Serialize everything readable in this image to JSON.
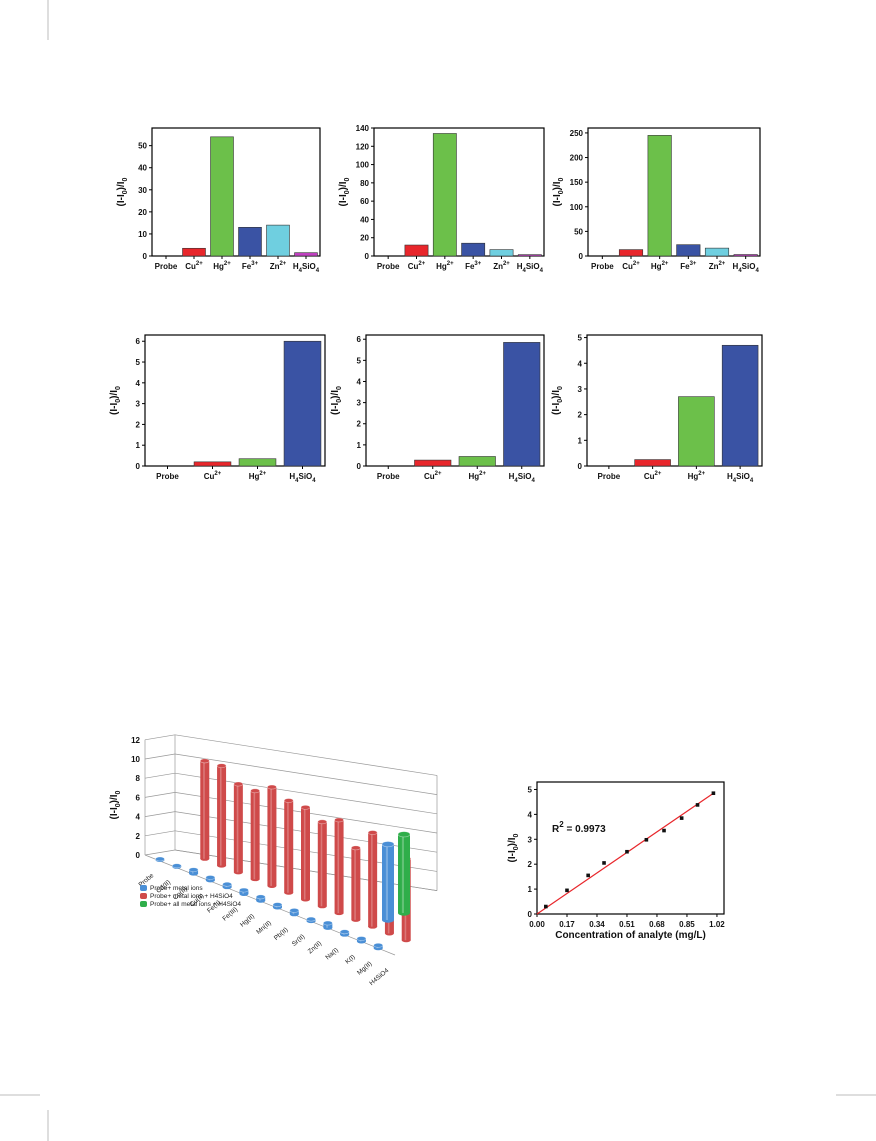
{
  "colors": {
    "red": "#e8262b",
    "green": "#6cc04a",
    "blue": "#3a53a4",
    "cyan": "#6fcfe0",
    "magenta": "#c040c0",
    "cyl_blue": "#4a8fd6",
    "cyl_red": "#cf4a4a",
    "cyl_green": "#2fae4a"
  },
  "chart_data": [
    {
      "type": "bar",
      "categories": [
        "Probe",
        "Cu2+",
        "Hg2+",
        "Fe3+",
        "Zn2+",
        "H4SiO4"
      ],
      "values": [
        0,
        3.5,
        54,
        13,
        14,
        1.5
      ],
      "ylabel": "(I-I0)/I0",
      "ylim": [
        0,
        58
      ],
      "yticks": [
        0,
        10,
        20,
        30,
        40,
        50
      ],
      "bar_colors": [
        "#e8262b",
        "#e8262b",
        "#6cc04a",
        "#3a53a4",
        "#6fcfe0",
        "#c040c0"
      ]
    },
    {
      "type": "bar",
      "categories": [
        "Probe",
        "Cu2+",
        "Hg2+",
        "Fe3+",
        "Zn2+",
        "H4SiO4"
      ],
      "values": [
        0,
        12,
        134,
        14,
        7,
        1.5
      ],
      "ylabel": "(I-I0)/I0",
      "ylim": [
        0,
        140
      ],
      "yticks": [
        0,
        20,
        40,
        60,
        80,
        100,
        120,
        140
      ],
      "bar_colors": [
        "#e8262b",
        "#e8262b",
        "#6cc04a",
        "#3a53a4",
        "#6fcfe0",
        "#c040c0"
      ]
    },
    {
      "type": "bar",
      "categories": [
        "Probe",
        "Cu2+",
        "Hg2+",
        "Fe3+",
        "Zn2+",
        "H4SiO4"
      ],
      "values": [
        0,
        13,
        245,
        23,
        16,
        3
      ],
      "ylabel": "(I-I0)/I0",
      "ylim": [
        0,
        260
      ],
      "yticks": [
        0,
        50,
        100,
        150,
        200,
        250
      ],
      "bar_colors": [
        "#e8262b",
        "#e8262b",
        "#6cc04a",
        "#3a53a4",
        "#6fcfe0",
        "#c040c0"
      ]
    },
    {
      "type": "bar",
      "categories": [
        "Probe",
        "Cu2+",
        "Hg2+",
        "H4SiO4"
      ],
      "values": [
        0,
        0.2,
        0.35,
        6.0
      ],
      "ylabel": "(I-I0)/I0",
      "ylim": [
        0,
        6.3
      ],
      "yticks": [
        0,
        1,
        2,
        3,
        4,
        5,
        6
      ],
      "bar_colors": [
        "#e8262b",
        "#e8262b",
        "#6cc04a",
        "#3a53a4"
      ]
    },
    {
      "type": "bar",
      "categories": [
        "Probe",
        "Cu2+",
        "Hg2+",
        "H4SiO4"
      ],
      "values": [
        0,
        0.28,
        0.45,
        5.85
      ],
      "ylabel": "(I-I0)/I0",
      "ylim": [
        0,
        6.2
      ],
      "yticks": [
        0,
        1,
        2,
        3,
        4,
        5,
        6
      ],
      "bar_colors": [
        "#e8262b",
        "#e8262b",
        "#6cc04a",
        "#3a53a4"
      ]
    },
    {
      "type": "bar",
      "categories": [
        "Probe",
        "Cu2+",
        "Hg2+",
        "H4SiO4"
      ],
      "values": [
        0,
        0.25,
        2.7,
        4.7
      ],
      "ylabel": "(I-I0)/I0",
      "ylim": [
        0,
        5.1
      ],
      "yticks": [
        0,
        1,
        2,
        3,
        4,
        5
      ],
      "bar_colors": [
        "#e8262b",
        "#e8262b",
        "#6cc04a",
        "#3a53a4"
      ]
    },
    {
      "type": "bar",
      "categories": [
        "Probe",
        "Cd(II)",
        "Co(II)",
        "Cu(II)",
        "Fe(II)",
        "Fe(III)",
        "Hg(II)",
        "Mn(II)",
        "Pb(II)",
        "Sr(II)",
        "Zn(II)",
        "Na(I)",
        "K(I)",
        "Mg(II)",
        "H4SiO4"
      ],
      "series": [
        {
          "name": "Probe+ metal ions",
          "values": [
            0,
            0.1,
            0.4,
            0.3,
            0.3,
            0.4,
            0.4,
            0.3,
            0.4,
            0.2,
            0.5,
            0.3,
            0.3,
            0.3,
            8
          ]
        },
        {
          "name": "Probe+ metal ions + H4SiO4",
          "values": [
            null,
            10.2,
            10.4,
            9.2,
            9.2,
            10.3,
            9.6,
            9.6,
            8.8,
            9.7,
            7.5,
            9.8,
            8.7,
            8.5,
            8
          ]
        },
        {
          "name": "Probe+ all metal ions + H4SiO4",
          "values": [
            null,
            null,
            null,
            null,
            null,
            null,
            null,
            null,
            null,
            null,
            null,
            null,
            null,
            null,
            8
          ]
        }
      ],
      "ylabel": "(I-I0)/I0",
      "ylim": [
        0,
        12
      ],
      "yticks": [
        "0",
        "2",
        "4",
        "6",
        "8",
        "10",
        "12"
      ]
    },
    {
      "type": "scatter",
      "x": [
        0.05,
        0.17,
        0.29,
        0.38,
        0.51,
        0.62,
        0.72,
        0.82,
        0.91,
        1.0
      ],
      "y": [
        0.3,
        0.95,
        1.55,
        2.05,
        2.5,
        2.98,
        3.35,
        3.85,
        4.38,
        4.85
      ],
      "fit_line": {
        "x": [
          0.0,
          1.0
        ],
        "y": [
          0.0,
          4.85
        ]
      },
      "annotation": "R",
      "annotation_sup": "2",
      "annotation_rest": " = 0.9973",
      "xlabel": "Concentration of analyte (mg/L)",
      "ylabel": "(I-I0)/I0",
      "xlim": [
        0,
        1.06
      ],
      "ylim": [
        0,
        5.3
      ],
      "xticks": [
        "0.00",
        "0.17",
        "0.34",
        "0.51",
        "0.68",
        "0.85",
        "1.02"
      ],
      "yticks": [
        "0",
        "1",
        "2",
        "3",
        "4",
        "5"
      ]
    }
  ]
}
